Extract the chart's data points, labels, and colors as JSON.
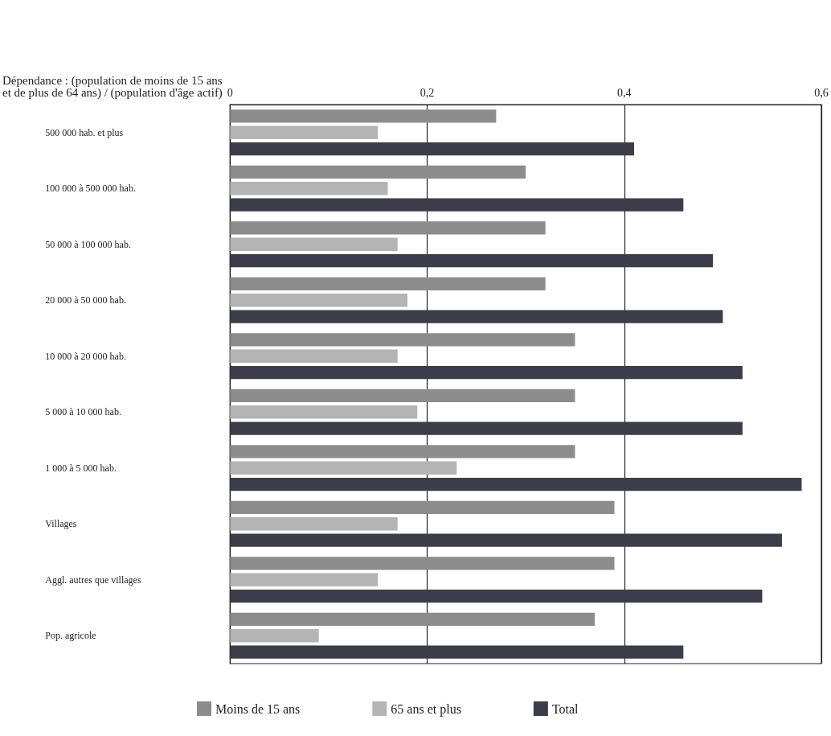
{
  "chart_data": {
    "type": "bar",
    "orientation": "horizontal",
    "xlabel": "Dépendance : (population de moins de 15 ans\net de plus de 64 ans) / (population d'âge actif)",
    "categories": [
      "500 000 hab. et plus",
      "100 000 à 500 000 hab.",
      "50 000 à 100 000 hab.",
      "20 000 à 50 000 hab.",
      "10 000 à 20 000 hab.",
      "5 000 à 10 000 hab.",
      "1 000 à 5 000 hab.",
      "Villages",
      "Aggl. autres que villages",
      "Pop. agricole"
    ],
    "series": [
      {
        "name": "Moins de 15 ans",
        "color": "#8c8c8c",
        "values": [
          0.27,
          0.3,
          0.32,
          0.32,
          0.35,
          0.35,
          0.35,
          0.39,
          0.39,
          0.37
        ]
      },
      {
        "name": "65 ans et plus",
        "color": "#b4b4b4",
        "values": [
          0.15,
          0.16,
          0.17,
          0.18,
          0.17,
          0.19,
          0.23,
          0.17,
          0.15,
          0.09
        ]
      },
      {
        "name": "Total",
        "color": "#3c3c4a",
        "values": [
          0.41,
          0.46,
          0.49,
          0.5,
          0.52,
          0.52,
          0.58,
          0.56,
          0.54,
          0.46
        ]
      }
    ],
    "xlim": [
      0,
      0.6
    ],
    "xticks": [
      0,
      {
        "value": 0.2,
        "label": "0,2"
      },
      {
        "value": 0.4,
        "label": "0,4"
      },
      {
        "value": 0.6,
        "label": "0,6"
      }
    ],
    "grid": "x",
    "legend": "bottom"
  }
}
